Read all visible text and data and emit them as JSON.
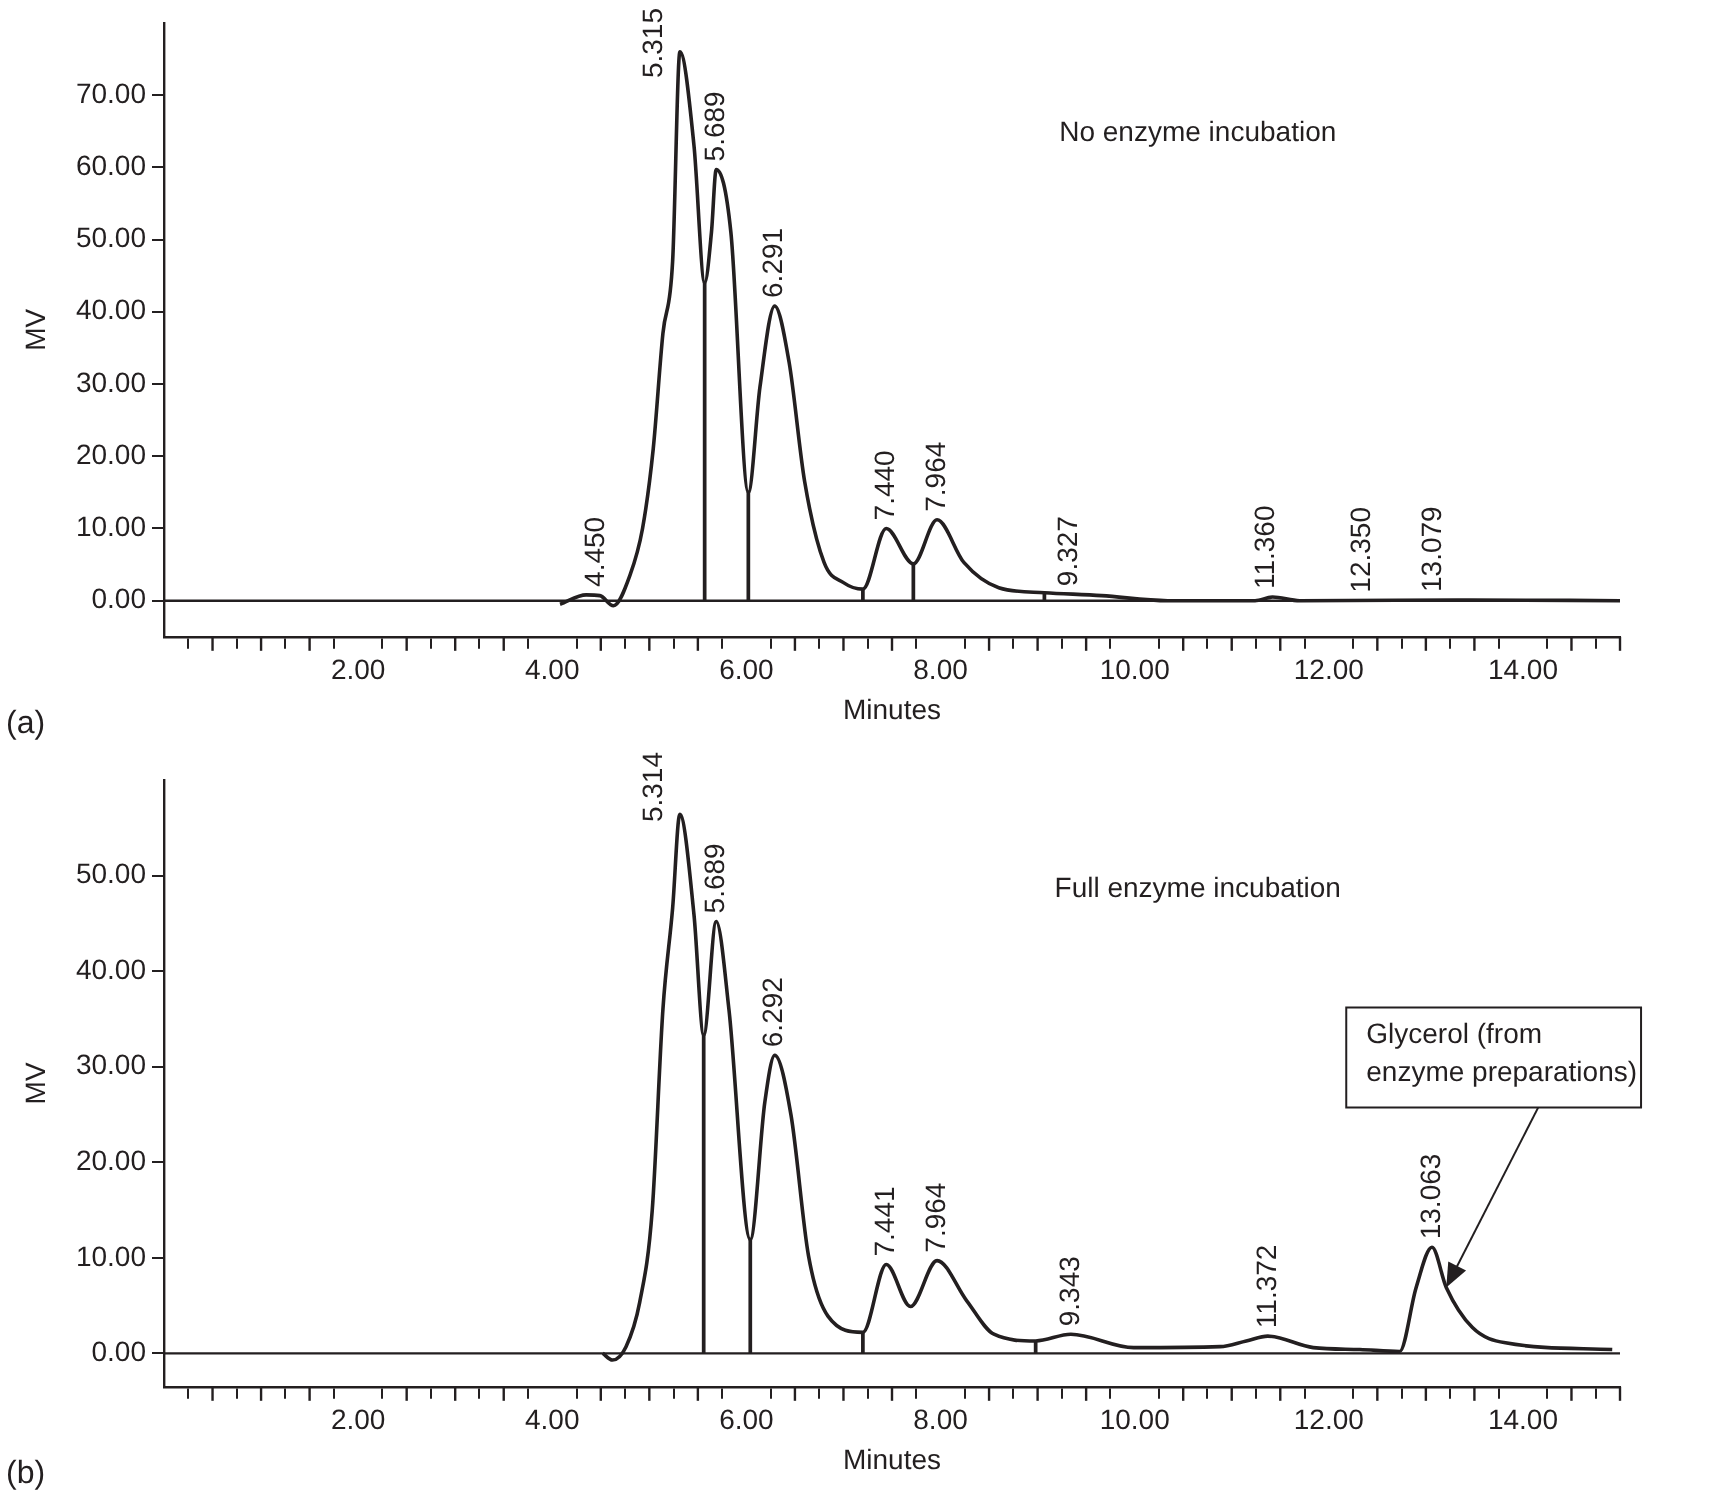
{
  "chart_data": [
    {
      "type": "line",
      "title": "(a)",
      "subtitle": "No enzyme incubation",
      "xlabel": "Minutes",
      "ylabel": "MV",
      "legend": false,
      "grid": false,
      "xlim": [
        0,
        15
      ],
      "ylim": [
        -5,
        80
      ],
      "xticks": [
        {
          "value": 0.5,
          "label": null
        },
        {
          "value": 1,
          "label": null
        },
        {
          "value": 1.5,
          "label": null
        },
        {
          "value": 2,
          "label": "2.00"
        },
        {
          "value": 2.5,
          "label": null
        },
        {
          "value": 3,
          "label": null
        },
        {
          "value": 3.5,
          "label": null
        },
        {
          "value": 4,
          "label": "4.00"
        },
        {
          "value": 4.5,
          "label": null
        },
        {
          "value": 5,
          "label": null
        },
        {
          "value": 5.5,
          "label": null
        },
        {
          "value": 6,
          "label": "6.00"
        },
        {
          "value": 6.5,
          "label": null
        },
        {
          "value": 7,
          "label": null
        },
        {
          "value": 7.5,
          "label": null
        },
        {
          "value": 8,
          "label": "8.00"
        },
        {
          "value": 8.5,
          "label": null
        },
        {
          "value": 9,
          "label": null
        },
        {
          "value": 9.5,
          "label": null
        },
        {
          "value": 10,
          "label": "10.00"
        },
        {
          "value": 10.5,
          "label": null
        },
        {
          "value": 11,
          "label": null
        },
        {
          "value": 11.5,
          "label": null
        },
        {
          "value": 12,
          "label": "12.00"
        },
        {
          "value": 12.5,
          "label": null
        },
        {
          "value": 13,
          "label": null
        },
        {
          "value": 13.5,
          "label": null
        },
        {
          "value": 14,
          "label": "14.00"
        },
        {
          "value": 14.5,
          "label": null
        },
        {
          "value": 15,
          "label": null
        }
      ],
      "yticks": [
        {
          "value": 0,
          "label": "0.00"
        },
        {
          "value": 10,
          "label": "10.00"
        },
        {
          "value": 20,
          "label": "20.00"
        },
        {
          "value": 30,
          "label": "30.00"
        },
        {
          "value": 40,
          "label": "40.00"
        },
        {
          "value": 50,
          "label": "50.00"
        },
        {
          "value": 60,
          "label": "60.00"
        },
        {
          "value": 70,
          "label": "70.00"
        }
      ],
      "series": [
        {
          "color": "#231f20",
          "x": [
            4.08,
            4.35,
            4.49,
            4.63,
            4.8,
            4.93,
            5.04,
            5.14,
            5.24,
            5.315,
            5.46,
            5.57,
            5.64,
            5.689,
            5.84,
            6.02,
            6.14,
            6.291,
            6.44,
            6.6,
            6.8,
            7.0,
            7.2,
            7.44,
            7.72,
            7.964,
            8.24,
            8.6,
            9.07,
            9.66,
            10.34,
            11.24,
            11.42,
            11.7,
            13.45,
            15.0
          ],
          "values": [
            -0.5,
            0.8,
            0.7,
            -0.7,
            3.5,
            10,
            21,
            37,
            47,
            76,
            63,
            44,
            51,
            59.7,
            51,
            15,
            29.6,
            40.8,
            33,
            16.5,
            5.3,
            2.5,
            1.6,
            10,
            5.1,
            11.2,
            5.3,
            1.8,
            1.1,
            0.7,
            0,
            0,
            0.5,
            0,
            0.1,
            0
          ]
        },
        {
          "type": "bar",
          "color": "#231f20",
          "x": [
            5.57,
            6.02,
            7.2,
            7.72,
            9.07
          ],
          "values": [
            44,
            15,
            1.6,
            5.1,
            1.1
          ]
        }
      ],
      "ref_lines": [
        {
          "axis": "y",
          "value": 0,
          "color": "#231f20"
        }
      ],
      "annotations": [
        {
          "text": "4.450",
          "x": 4.45,
          "y": 0.8
        },
        {
          "text": "5.315",
          "x": 5.315,
          "y": 76
        },
        {
          "text": "5.689",
          "x": 5.689,
          "y": 59.7
        },
        {
          "text": "6.291",
          "x": 6.291,
          "y": 40.8
        },
        {
          "text": "7.440",
          "x": 7.44,
          "y": 10
        },
        {
          "text": "7.964",
          "x": 7.964,
          "y": 11.2
        },
        {
          "text": "9.327",
          "x": 9.327,
          "y": 0.9
        },
        {
          "text": "11.360",
          "x": 11.36,
          "y": 0.5
        },
        {
          "text": "12.350",
          "x": 12.35,
          "y": 0
        },
        {
          "text": "13.079",
          "x": 13.079,
          "y": 0.1
        }
      ]
    },
    {
      "type": "line",
      "title": "(b)",
      "subtitle": "Full enzyme incubation",
      "xlabel": "Minutes",
      "ylabel": "MV",
      "legend": false,
      "grid": false,
      "xlim": [
        0,
        15
      ],
      "ylim": [
        -3.5,
        60
      ],
      "xticks": [
        {
          "value": 0.5,
          "label": null
        },
        {
          "value": 1,
          "label": null
        },
        {
          "value": 1.5,
          "label": null
        },
        {
          "value": 2,
          "label": "2.00"
        },
        {
          "value": 2.5,
          "label": null
        },
        {
          "value": 3,
          "label": null
        },
        {
          "value": 3.5,
          "label": null
        },
        {
          "value": 4,
          "label": "4.00"
        },
        {
          "value": 4.5,
          "label": null
        },
        {
          "value": 5,
          "label": null
        },
        {
          "value": 5.5,
          "label": null
        },
        {
          "value": 6,
          "label": "6.00"
        },
        {
          "value": 6.5,
          "label": null
        },
        {
          "value": 7,
          "label": null
        },
        {
          "value": 7.5,
          "label": null
        },
        {
          "value": 8,
          "label": "8.00"
        },
        {
          "value": 8.5,
          "label": null
        },
        {
          "value": 9,
          "label": null
        },
        {
          "value": 9.5,
          "label": null
        },
        {
          "value": 10,
          "label": "10.00"
        },
        {
          "value": 10.5,
          "label": null
        },
        {
          "value": 11,
          "label": null
        },
        {
          "value": 11.5,
          "label": null
        },
        {
          "value": 12,
          "label": "12.00"
        },
        {
          "value": 12.5,
          "label": null
        },
        {
          "value": 13,
          "label": null
        },
        {
          "value": 13.5,
          "label": null
        },
        {
          "value": 14,
          "label": "14.00"
        },
        {
          "value": 14.5,
          "label": null
        },
        {
          "value": 15,
          "label": null
        }
      ],
      "yticks": [
        {
          "value": 0,
          "label": "0.00"
        },
        {
          "value": 10,
          "label": "10.00"
        },
        {
          "value": 20,
          "label": "20.00"
        },
        {
          "value": 30,
          "label": "30.00"
        },
        {
          "value": 40,
          "label": "40.00"
        },
        {
          "value": 50,
          "label": "50.00"
        }
      ],
      "series": [
        {
          "color": "#231f20",
          "x": [
            4.52,
            4.62,
            4.76,
            4.9,
            5.03,
            5.14,
            5.24,
            5.314,
            5.46,
            5.56,
            5.689,
            5.82,
            6.04,
            6.19,
            6.292,
            6.46,
            6.64,
            6.84,
            7.2,
            7.441,
            7.69,
            7.964,
            8.27,
            8.55,
            8.98,
            9.343,
            9.99,
            10.88,
            11.15,
            11.372,
            11.84,
            12.32,
            12.73,
            12.9,
            13.063,
            13.21,
            13.48,
            13.82,
            14.92
          ],
          "values": [
            0,
            -0.7,
            0.7,
            5.3,
            15,
            36,
            46.6,
            56.4,
            45.9,
            33.3,
            45.2,
            36,
            11.9,
            26.3,
            31.2,
            24.9,
            10.2,
            3.9,
            2.2,
            9.3,
            4.9,
            9.7,
            5.5,
            2,
            1.3,
            2,
            0.6,
            0.7,
            1.3,
            1.8,
            0.6,
            0.4,
            0.2,
            6.9,
            11.1,
            6.9,
            2.7,
            1.1,
            0.4
          ]
        },
        {
          "type": "bar",
          "color": "#231f20",
          "x": [
            5.56,
            6.04,
            7.2,
            8.98
          ],
          "values": [
            33.3,
            11.9,
            2.2,
            1.3
          ]
        }
      ],
      "ref_lines": [
        {
          "axis": "y",
          "value": 0,
          "color": "#231f20"
        }
      ],
      "annotations": [
        {
          "text": "5.314",
          "x": 5.314,
          "y": 56.4
        },
        {
          "text": "5.689",
          "x": 5.689,
          "y": 45.2
        },
        {
          "text": "6.292",
          "x": 6.292,
          "y": 31.2
        },
        {
          "text": "7.441",
          "x": 7.441,
          "y": 9.3
        },
        {
          "text": "7.964",
          "x": 7.964,
          "y": 9.7
        },
        {
          "text": "9.343",
          "x": 9.343,
          "y": 2
        },
        {
          "text": "11.372",
          "x": 11.372,
          "y": 1.8
        },
        {
          "text": "13.063",
          "x": 13.063,
          "y": 11.1
        },
        {
          "text": "Glycerol (from enzyme preparations)",
          "x": 13.21,
          "y": 6.9
        }
      ]
    }
  ]
}
